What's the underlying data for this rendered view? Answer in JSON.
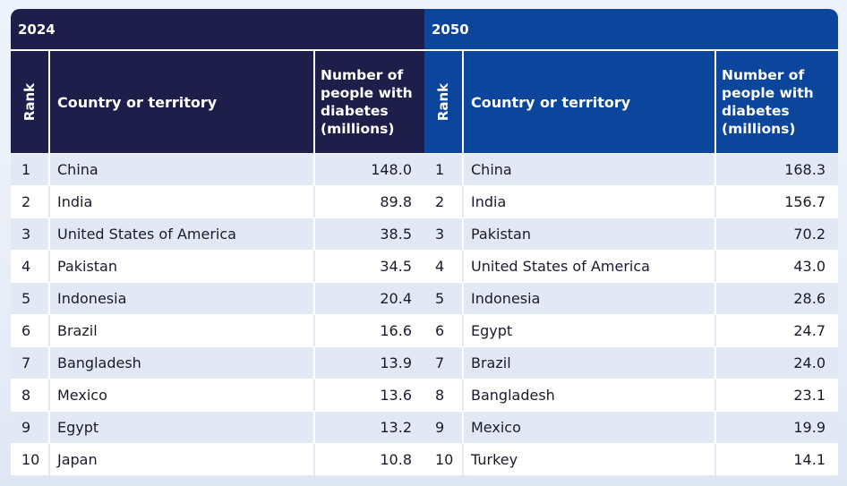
{
  "tables": [
    {
      "year": "2024",
      "headers": {
        "rank": "Rank",
        "country": "Country or territory",
        "number": "Number of people with diabetes (millions)"
      },
      "rows": [
        {
          "rank": "1",
          "country": "China",
          "value": "148.0"
        },
        {
          "rank": "2",
          "country": "India",
          "value": "89.8"
        },
        {
          "rank": "3",
          "country": "United States of America",
          "value": "38.5"
        },
        {
          "rank": "4",
          "country": "Pakistan",
          "value": "34.5"
        },
        {
          "rank": "5",
          "country": "Indonesia",
          "value": "20.4"
        },
        {
          "rank": "6",
          "country": "Brazil",
          "value": "16.6"
        },
        {
          "rank": "7",
          "country": "Bangladesh",
          "value": "13.9"
        },
        {
          "rank": "8",
          "country": "Mexico",
          "value": "13.6"
        },
        {
          "rank": "9",
          "country": "Egypt",
          "value": "13.2"
        },
        {
          "rank": "10",
          "country": "Japan",
          "value": "10.8"
        }
      ]
    },
    {
      "year": "2050",
      "headers": {
        "rank": "Rank",
        "country": "Country or territory",
        "number": "Number of people with diabetes (millions)"
      },
      "rows": [
        {
          "rank": "1",
          "country": "China",
          "value": "168.3"
        },
        {
          "rank": "2",
          "country": "India",
          "value": "156.7"
        },
        {
          "rank": "3",
          "country": "Pakistan",
          "value": "70.2"
        },
        {
          "rank": "4",
          "country": "United States of America",
          "value": "43.0"
        },
        {
          "rank": "5",
          "country": "Indonesia",
          "value": "28.6"
        },
        {
          "rank": "6",
          "country": "Egypt",
          "value": "24.7"
        },
        {
          "rank": "7",
          "country": "Brazil",
          "value": "24.0"
        },
        {
          "rank": "8",
          "country": "Bangladesh",
          "value": "23.1"
        },
        {
          "rank": "9",
          "country": "Mexico",
          "value": "19.9"
        },
        {
          "rank": "10",
          "country": "Turkey",
          "value": "14.1"
        }
      ]
    }
  ],
  "chart_data": {
    "type": "table",
    "tables": [
      {
        "title": "2024",
        "columns": [
          "Rank",
          "Country or territory",
          "Number of people with diabetes (millions)"
        ],
        "rows": [
          [
            1,
            "China",
            148.0
          ],
          [
            2,
            "India",
            89.8
          ],
          [
            3,
            "United States of America",
            38.5
          ],
          [
            4,
            "Pakistan",
            34.5
          ],
          [
            5,
            "Indonesia",
            20.4
          ],
          [
            6,
            "Brazil",
            16.6
          ],
          [
            7,
            "Bangladesh",
            13.9
          ],
          [
            8,
            "Mexico",
            13.6
          ],
          [
            9,
            "Egypt",
            13.2
          ],
          [
            10,
            "Japan",
            10.8
          ]
        ]
      },
      {
        "title": "2050",
        "columns": [
          "Rank",
          "Country or territory",
          "Number of people with diabetes (millions)"
        ],
        "rows": [
          [
            1,
            "China",
            168.3
          ],
          [
            2,
            "India",
            156.7
          ],
          [
            3,
            "Pakistan",
            70.2
          ],
          [
            4,
            "United States of America",
            43.0
          ],
          [
            5,
            "Indonesia",
            28.6
          ],
          [
            6,
            "Egypt",
            24.7
          ],
          [
            7,
            "Brazil",
            24.0
          ],
          [
            8,
            "Bangladesh",
            23.1
          ],
          [
            9,
            "Mexico",
            19.9
          ],
          [
            10,
            "Turkey",
            14.1
          ]
        ]
      }
    ]
  },
  "colors": {
    "header_2024": "#1d1f4a",
    "header_2050": "#0c459c",
    "row_stripe": "#e3e9f4"
  }
}
